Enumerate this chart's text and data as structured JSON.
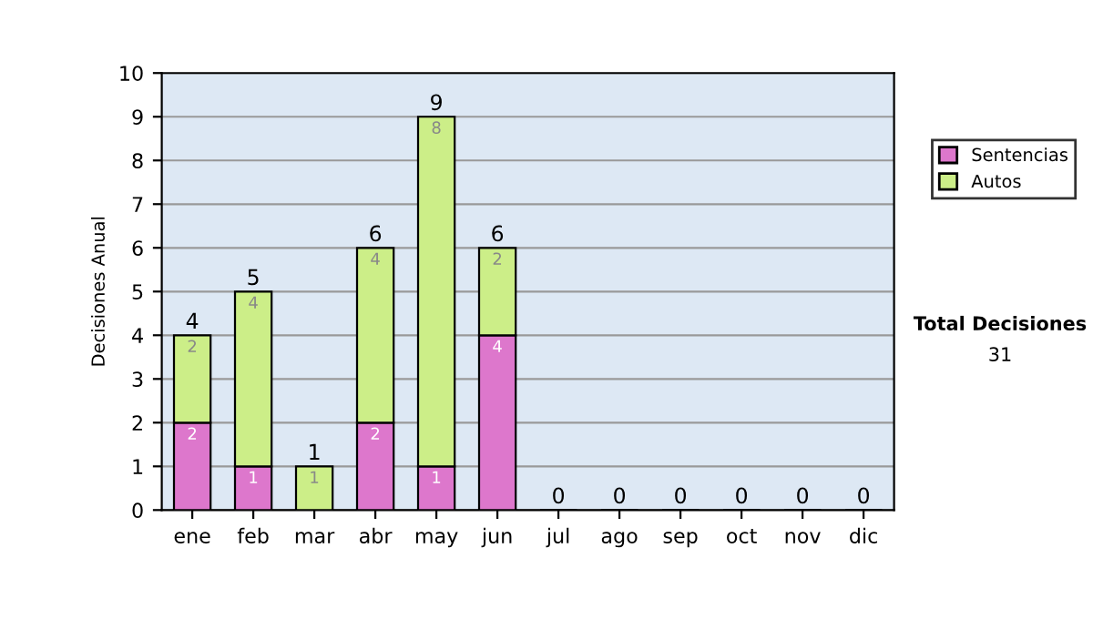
{
  "chart_data": {
    "type": "bar",
    "stacked": true,
    "ylabel": "Decisiones Anual",
    "categories": [
      "ene",
      "feb",
      "mar",
      "abr",
      "may",
      "jun",
      "jul",
      "ago",
      "sep",
      "oct",
      "nov",
      "dic"
    ],
    "series": [
      {
        "name": "Sentencias",
        "color": "#dd77cc",
        "values": [
          2,
          1,
          0,
          2,
          1,
          4,
          0,
          0,
          0,
          0,
          0,
          0
        ],
        "value_labels": [
          "2",
          "1",
          null,
          "2",
          "1",
          "4",
          null,
          null,
          null,
          null,
          null,
          null
        ]
      },
      {
        "name": "Autos",
        "color": "#ccee88",
        "values": [
          2,
          4,
          1,
          4,
          8,
          2,
          0,
          0,
          0,
          0,
          0,
          0
        ],
        "value_labels": [
          "2",
          "4",
          "1",
          "4",
          "8",
          "2",
          null,
          null,
          null,
          null,
          null,
          null
        ]
      }
    ],
    "totals": [
      "4",
      "5",
      "1",
      "6",
      "9",
      "6",
      "0",
      "0",
      "0",
      "0",
      "0",
      "0"
    ],
    "ylim": [
      0,
      10
    ],
    "yticks": [
      0,
      1,
      2,
      3,
      4,
      5,
      6,
      7,
      8,
      9,
      10
    ],
    "grid": "y",
    "legend": "right",
    "annotations": [
      "Total Decisiones",
      "31"
    ]
  }
}
